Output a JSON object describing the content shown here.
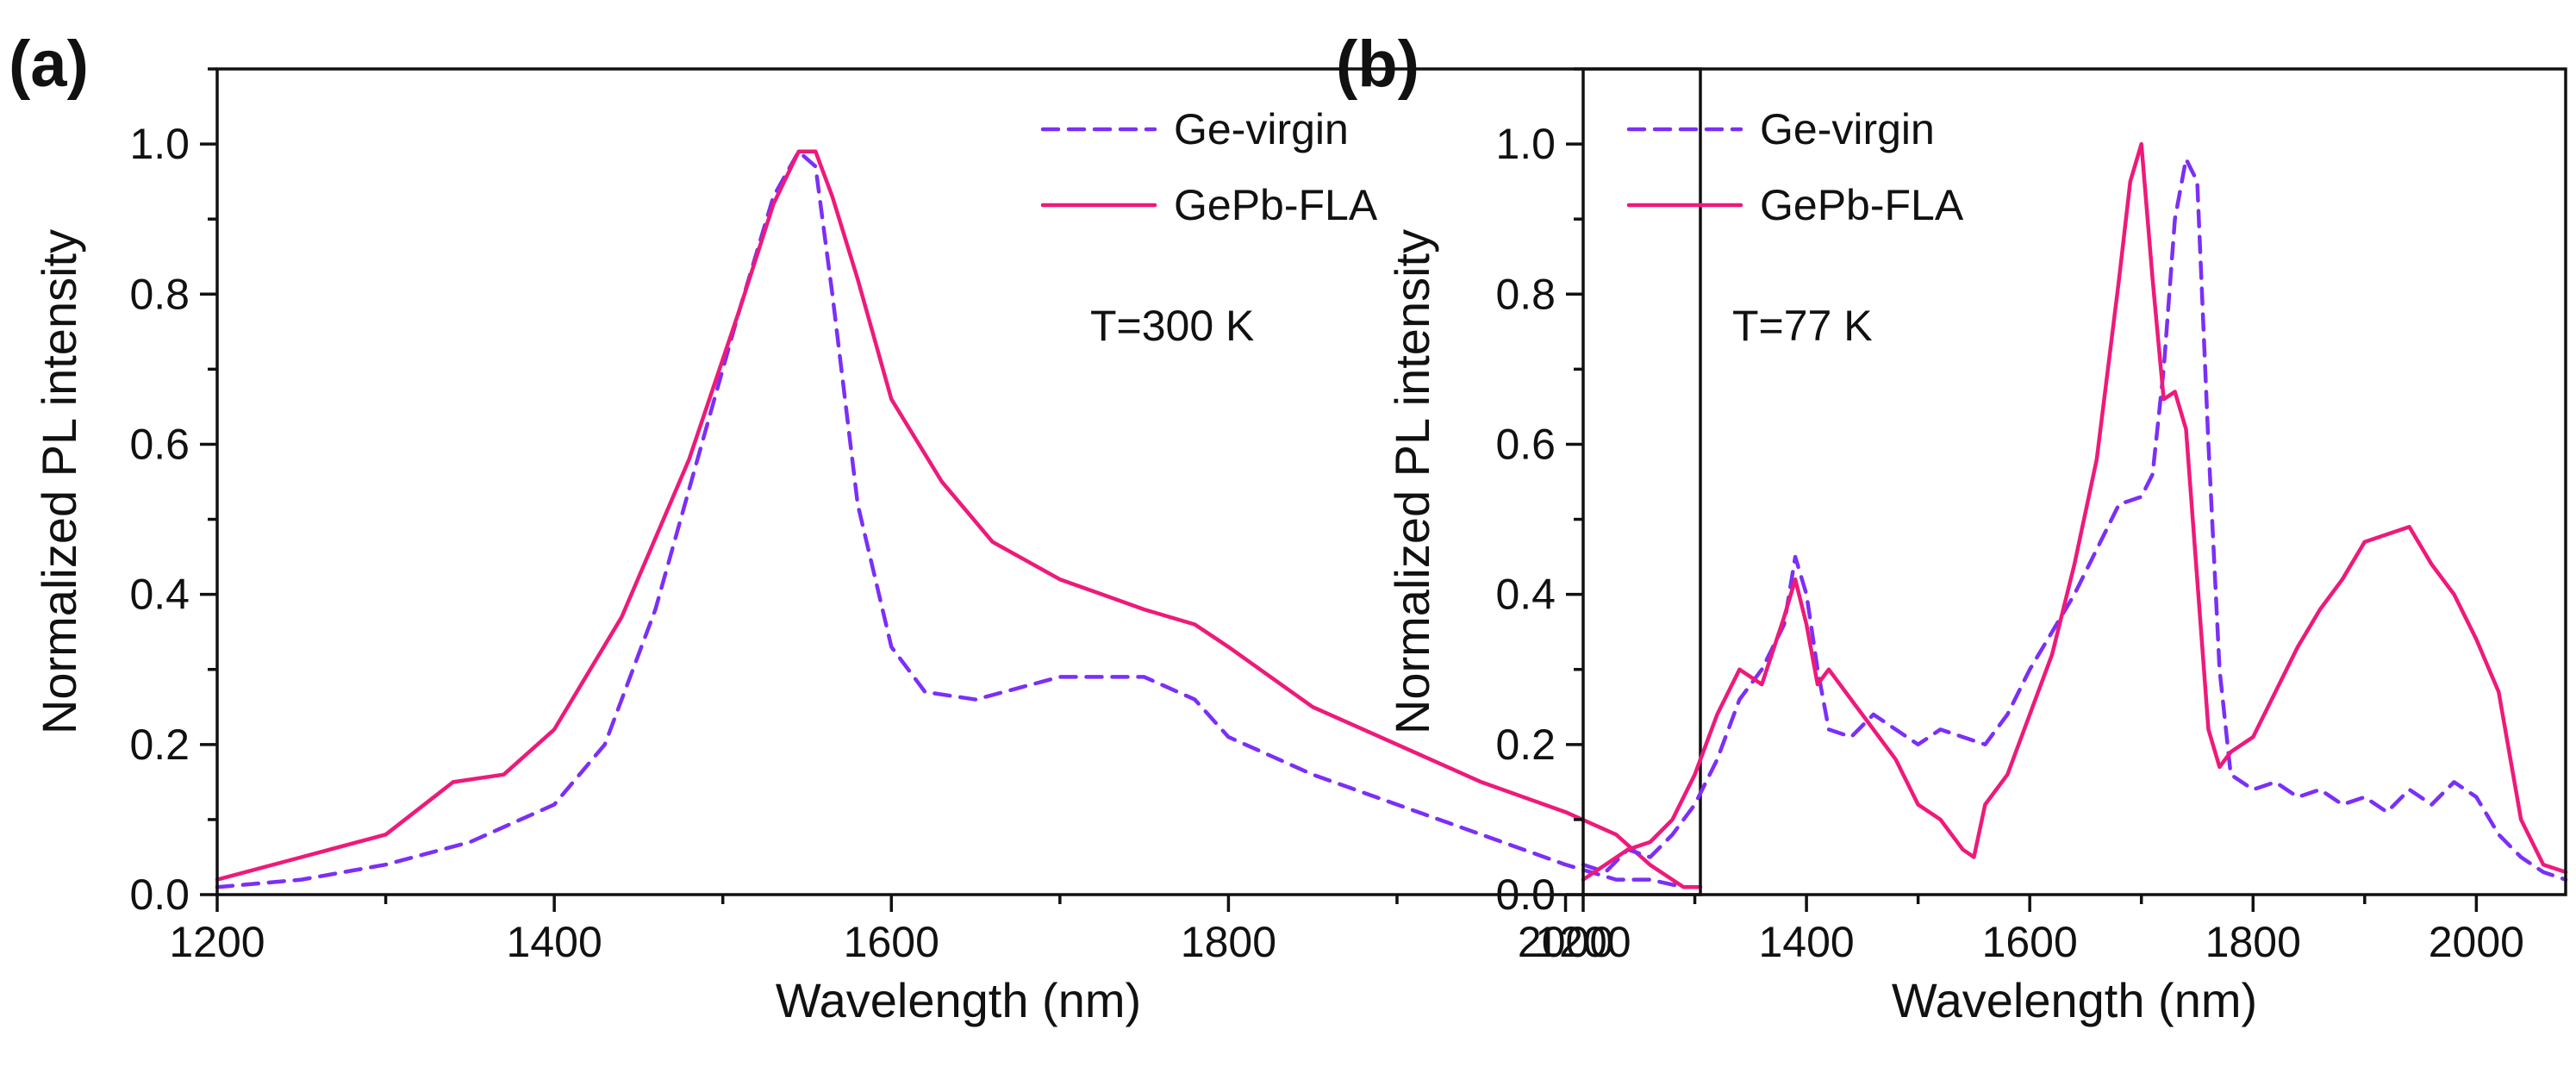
{
  "chart_data": [
    {
      "panel_label": "(a)",
      "type": "line",
      "xlabel": "Wavelength (nm)",
      "ylabel": "Normalized PL intensity",
      "xlim": [
        1200,
        2080
      ],
      "ylim": [
        0,
        1.1
      ],
      "xticks": [
        1200,
        1400,
        1600,
        1800,
        2000
      ],
      "xtick_labels": [
        "1200",
        "1400",
        "1600",
        "1800",
        "2000"
      ],
      "yticks": [
        0.0,
        0.2,
        0.4,
        0.6,
        0.8,
        1.0
      ],
      "ytick_labels": [
        "0.0",
        "0.2",
        "0.4",
        "0.6",
        "0.8",
        "1.0"
      ],
      "legend_position": "top-right",
      "annotation": "T=300 K",
      "series": [
        {
          "name": "Ge-virgin",
          "color": "#7b2ff7",
          "style": "dashed",
          "x": [
            1200,
            1250,
            1300,
            1350,
            1400,
            1430,
            1460,
            1490,
            1510,
            1530,
            1545,
            1555,
            1565,
            1580,
            1600,
            1620,
            1650,
            1700,
            1750,
            1780,
            1800,
            1850,
            1900,
            1950,
            2000,
            2030,
            2050,
            2070,
            2080
          ],
          "y": [
            0.01,
            0.02,
            0.04,
            0.07,
            0.12,
            0.2,
            0.38,
            0.62,
            0.78,
            0.93,
            0.99,
            0.97,
            0.8,
            0.52,
            0.33,
            0.27,
            0.26,
            0.29,
            0.29,
            0.26,
            0.21,
            0.16,
            0.12,
            0.08,
            0.04,
            0.02,
            0.02,
            0.01,
            0.01
          ]
        },
        {
          "name": "GePb-FLA",
          "color": "#ee1a7a",
          "style": "solid",
          "x": [
            1200,
            1250,
            1300,
            1340,
            1370,
            1400,
            1440,
            1480,
            1510,
            1530,
            1545,
            1555,
            1565,
            1580,
            1600,
            1630,
            1660,
            1700,
            1750,
            1780,
            1800,
            1850,
            1900,
            1950,
            2000,
            2030,
            2050,
            2070,
            2080
          ],
          "y": [
            0.02,
            0.05,
            0.08,
            0.15,
            0.16,
            0.22,
            0.37,
            0.58,
            0.78,
            0.92,
            0.99,
            0.99,
            0.93,
            0.82,
            0.66,
            0.55,
            0.47,
            0.42,
            0.38,
            0.36,
            0.33,
            0.25,
            0.2,
            0.15,
            0.11,
            0.08,
            0.04,
            0.01,
            0.01
          ]
        }
      ]
    },
    {
      "panel_label": "(b)",
      "type": "line",
      "xlabel": "Wavelength (nm)",
      "ylabel": "Normalized PL intensity",
      "xlim": [
        1200,
        2080
      ],
      "ylim": [
        0,
        1.1
      ],
      "xticks": [
        1200,
        1400,
        1600,
        1800,
        2000
      ],
      "xtick_labels": [
        "1200",
        "1400",
        "1600",
        "1800",
        "2000"
      ],
      "yticks": [
        0.0,
        0.2,
        0.4,
        0.6,
        0.8,
        1.0
      ],
      "ytick_labels": [
        "0.0",
        "0.2",
        "0.4",
        "0.6",
        "0.8",
        "1.0"
      ],
      "legend_position": "top-left",
      "annotation": "T=77 K",
      "series": [
        {
          "name": "Ge-virgin",
          "color": "#7b2ff7",
          "style": "dashed",
          "x": [
            1200,
            1220,
            1240,
            1260,
            1280,
            1300,
            1320,
            1340,
            1360,
            1380,
            1390,
            1400,
            1410,
            1420,
            1440,
            1460,
            1480,
            1500,
            1520,
            1540,
            1560,
            1580,
            1600,
            1620,
            1640,
            1660,
            1680,
            1700,
            1710,
            1720,
            1730,
            1740,
            1750,
            1760,
            1770,
            1780,
            1800,
            1820,
            1840,
            1860,
            1880,
            1900,
            1920,
            1940,
            1960,
            1980,
            2000,
            2020,
            2040,
            2060,
            2080
          ],
          "y": [
            0.04,
            0.03,
            0.06,
            0.05,
            0.08,
            0.12,
            0.18,
            0.26,
            0.3,
            0.36,
            0.45,
            0.4,
            0.3,
            0.22,
            0.21,
            0.24,
            0.22,
            0.2,
            0.22,
            0.21,
            0.2,
            0.24,
            0.3,
            0.35,
            0.4,
            0.46,
            0.52,
            0.53,
            0.56,
            0.7,
            0.9,
            0.98,
            0.95,
            0.6,
            0.3,
            0.16,
            0.14,
            0.15,
            0.13,
            0.14,
            0.12,
            0.13,
            0.11,
            0.14,
            0.12,
            0.15,
            0.13,
            0.08,
            0.05,
            0.03,
            0.02
          ]
        },
        {
          "name": "GePb-FLA",
          "color": "#ee1a7a",
          "style": "solid",
          "x": [
            1200,
            1220,
            1240,
            1260,
            1280,
            1300,
            1320,
            1340,
            1360,
            1380,
            1390,
            1400,
            1410,
            1420,
            1440,
            1460,
            1480,
            1500,
            1520,
            1540,
            1550,
            1560,
            1580,
            1600,
            1620,
            1640,
            1660,
            1680,
            1690,
            1700,
            1710,
            1720,
            1730,
            1740,
            1750,
            1760,
            1770,
            1780,
            1800,
            1820,
            1840,
            1860,
            1880,
            1900,
            1920,
            1940,
            1960,
            1980,
            2000,
            2020,
            2040,
            2060,
            2080
          ],
          "y": [
            0.02,
            0.04,
            0.06,
            0.07,
            0.1,
            0.16,
            0.24,
            0.3,
            0.28,
            0.37,
            0.42,
            0.36,
            0.28,
            0.3,
            0.26,
            0.22,
            0.18,
            0.12,
            0.1,
            0.06,
            0.05,
            0.12,
            0.16,
            0.24,
            0.32,
            0.44,
            0.58,
            0.82,
            0.95,
            1.0,
            0.82,
            0.66,
            0.67,
            0.62,
            0.42,
            0.22,
            0.17,
            0.19,
            0.21,
            0.27,
            0.33,
            0.38,
            0.42,
            0.47,
            0.48,
            0.49,
            0.44,
            0.4,
            0.34,
            0.27,
            0.1,
            0.04,
            0.03
          ]
        }
      ]
    }
  ]
}
